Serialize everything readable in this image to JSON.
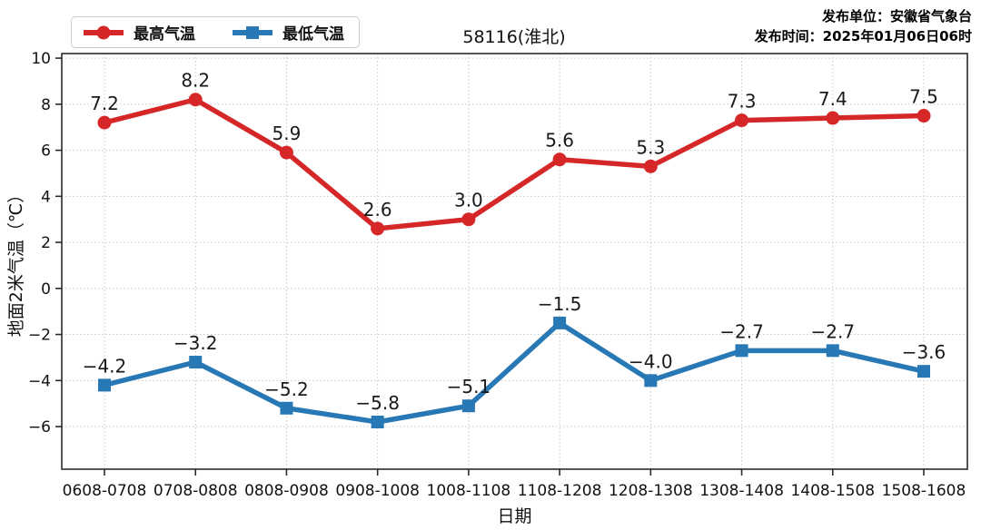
{
  "header": {
    "title": "58116(淮北)",
    "publisher": "发布单位：安徽省气象台",
    "publish_time": "发布时间：2025年01月06日06时"
  },
  "legend": {
    "max_label": "最高气温",
    "min_label": "最低气温"
  },
  "colors": {
    "max": "#d62728",
    "min": "#2878b5",
    "grid": "#c9c9c9",
    "axis": "#2b2b2b"
  },
  "chart_data": {
    "type": "line",
    "title": "58116(淮北)",
    "xlabel": "日期",
    "ylabel": "地面2米气温（℃）",
    "categories": [
      "0608-0708",
      "0708-0808",
      "0808-0908",
      "0908-1008",
      "1008-1108",
      "1108-1208",
      "1208-1308",
      "1308-1408",
      "1408-1508",
      "1508-1608"
    ],
    "series": [
      {
        "name": "最高气温",
        "color": "#d62728",
        "marker": "circle",
        "values": [
          7.2,
          8.2,
          5.9,
          2.6,
          3.0,
          5.6,
          5.3,
          7.3,
          7.4,
          7.5
        ]
      },
      {
        "name": "最低气温",
        "color": "#2878b5",
        "marker": "square",
        "values": [
          -4.2,
          -3.2,
          -5.2,
          -5.8,
          -5.1,
          -1.5,
          -4.0,
          -2.7,
          -2.7,
          -3.6
        ]
      }
    ],
    "yticks": [
      10,
      8,
      6,
      4,
      2,
      0,
      -2,
      -4,
      -6
    ],
    "ylim": [
      -7.85,
      10.2
    ],
    "grid": true,
    "legend_position": "top-left"
  }
}
